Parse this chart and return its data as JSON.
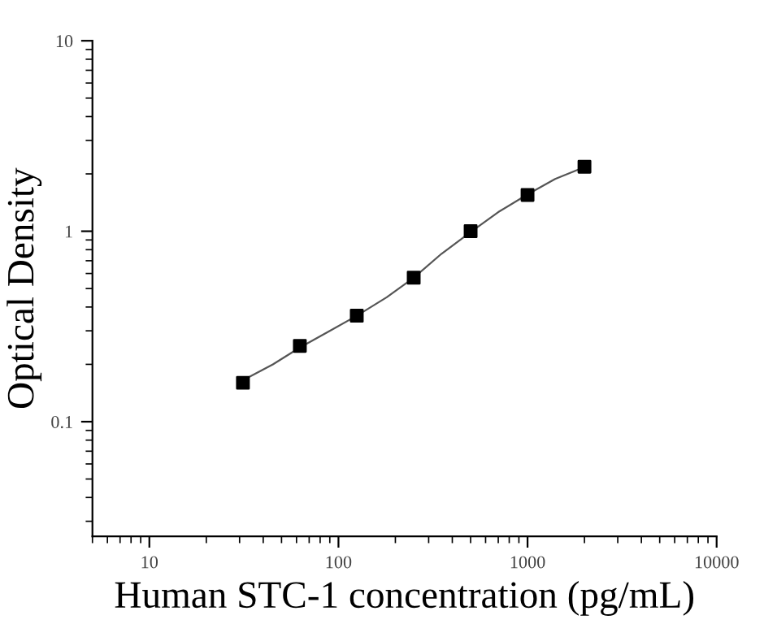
{
  "chart_data": {
    "type": "scatter",
    "xlabel": "Human STC-1 concentration (pg/mL)",
    "ylabel": "Optical Density",
    "log": "xy",
    "xlim": [
      5,
      10000
    ],
    "ylim": [
      0.025,
      10
    ],
    "xticks": [
      10,
      100,
      1000,
      10000
    ],
    "yticks": [
      {
        "value": 0.1,
        "label": "0.1"
      },
      1,
      10
    ],
    "grid": false,
    "series": [
      {
        "color": "#000000",
        "marker": "square",
        "x": [
          31.25,
          62.5,
          125,
          250,
          500,
          1000,
          2000
        ],
        "values": [
          0.16,
          0.25,
          0.36,
          0.57,
          1.0,
          1.55,
          2.18
        ]
      },
      {
        "type": "line",
        "color": "#555555",
        "marker": "none",
        "line_style": "solid",
        "x": [
          31.25,
          45,
          62.5,
          90,
          125,
          180,
          250,
          350,
          500,
          700,
          1000,
          1400,
          2000
        ],
        "values": [
          0.165,
          0.2,
          0.245,
          0.3,
          0.36,
          0.45,
          0.57,
          0.76,
          0.99,
          1.26,
          1.56,
          1.88,
          2.17
        ]
      }
    ]
  }
}
